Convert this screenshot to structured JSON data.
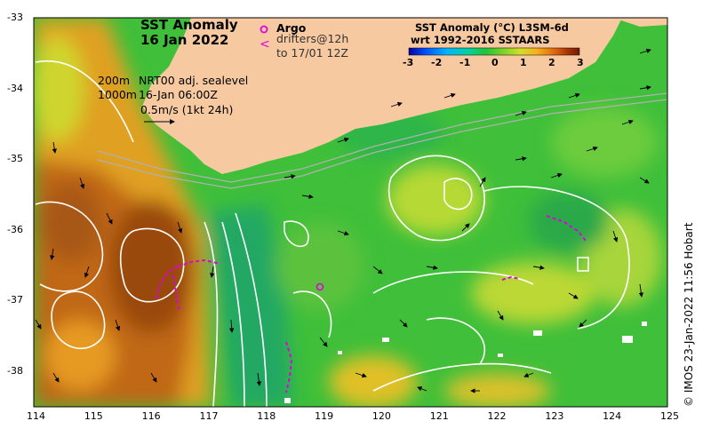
{
  "title": {
    "line1": "SST Anomaly",
    "line2": "16 Jan 2022"
  },
  "legend": {
    "argo_label": "Argo",
    "argo_symbol": "o",
    "drifter_symbol": "<",
    "drifter_label_1": "drifters@12h",
    "drifter_label_2": "to 17/01 12Z"
  },
  "colorbar": {
    "title_1": "SST Anomaly (°C) L3SM-6d",
    "title_2": "wrt 1992-2016 SSTAARS",
    "ticks": [
      "-3",
      "-2",
      "-1",
      "0",
      "1",
      "2",
      "3"
    ],
    "colors": [
      "#0000a0",
      "#0050ff",
      "#00b4ff",
      "#00d2a0",
      "#22c33a",
      "#7ad12a",
      "#d2de2a",
      "#f5b01e",
      "#e06a10",
      "#a83408",
      "#701a04"
    ]
  },
  "info": {
    "isobath_line_1": "200m",
    "isobath_line_2": "1000m",
    "sealevel_label": "NRT00 adj. sealevel",
    "datetime": "16-Jan 06:00Z",
    "scale_label": "0.5m/s (1kt 24h)"
  },
  "axes": {
    "lon_ticks": [
      "114",
      "115",
      "116",
      "117",
      "118",
      "119",
      "120",
      "121",
      "122",
      "123",
      "124",
      "125"
    ],
    "lat_ticks": [
      "-33",
      "-34",
      "-35",
      "-36",
      "-37",
      "-38"
    ]
  },
  "credit": "© IMOS 23-Jan-2022 11:56 Hobart",
  "colors": {
    "land": "#f7c9a0",
    "drifter": "#e000e0",
    "contour": "#ffffff"
  }
}
